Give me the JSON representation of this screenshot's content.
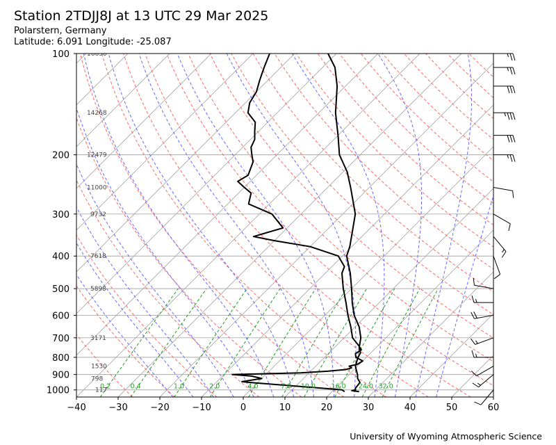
{
  "header": {
    "title": "Station 2TDJJ8J at 13 UTC 29 Mar 2025",
    "location": "Polarstern, Germany",
    "coords": "Latitude: 6.091 Longitude: -25.087"
  },
  "footer": {
    "credit": "University of Wyoming Atmospheric Science"
  },
  "colors": {
    "temperature": "#000000",
    "dewpoint": "#000000",
    "isotherm": "#aaaaaa",
    "dry_adiabat": "#ff6666",
    "moist_adiabat": "#6666ff",
    "mixing_ratio": "#229922"
  },
  "chart_data": {
    "type": "line",
    "skew_t": true,
    "x_axis": {
      "label": "",
      "range": [
        -40,
        60
      ],
      "ticks": [
        -40,
        -30,
        -20,
        -10,
        0,
        10,
        20,
        30,
        40,
        50,
        60
      ]
    },
    "y_axis": {
      "label": "",
      "log_scale": true,
      "range": [
        1050,
        100
      ],
      "ticks": [
        100,
        200,
        300,
        400,
        500,
        600,
        700,
        800,
        900,
        1000
      ]
    },
    "grid": true,
    "heights": [
      {
        "p": 100,
        "label": "16630"
      },
      {
        "p": 150,
        "label": "14268"
      },
      {
        "p": 200,
        "label": "12479"
      },
      {
        "p": 250,
        "label": "11000"
      },
      {
        "p": 300,
        "label": "9732"
      },
      {
        "p": 400,
        "label": "7618"
      },
      {
        "p": 500,
        "label": "5898"
      },
      {
        "p": 700,
        "label": "3171"
      },
      {
        "p": 850,
        "label": "1530"
      },
      {
        "p": 925,
        "label": "798"
      },
      {
        "p": 1000,
        "label": "117"
      }
    ],
    "mixing_ratio_labels": [
      "0.2",
      "0.4",
      "1.0",
      "2.0",
      "4.0",
      "7.0",
      "10.0",
      "16.0",
      "24.0",
      "32.0"
    ],
    "temperature": [
      [
        1012,
        26.5
      ],
      [
        1005,
        24.5
      ],
      [
        1000,
        25.2
      ],
      [
        990,
        24.8
      ],
      [
        950,
        24.5
      ],
      [
        925,
        23.0
      ],
      [
        900,
        22.0
      ],
      [
        880,
        21.0
      ],
      [
        850,
        19.5
      ],
      [
        800,
        18.0
      ],
      [
        775,
        17.5
      ],
      [
        750,
        16.0
      ],
      [
        700,
        14.0
      ],
      [
        650,
        11.0
      ],
      [
        600,
        7.0
      ],
      [
        550,
        3.5
      ],
      [
        500,
        0.0
      ],
      [
        450,
        -4.0
      ],
      [
        400,
        -9.0
      ],
      [
        375,
        -10.5
      ],
      [
        350,
        -12.5
      ],
      [
        300,
        -17.0
      ],
      [
        250,
        -24.5
      ],
      [
        225,
        -29.0
      ],
      [
        200,
        -35.0
      ],
      [
        175,
        -40.0
      ],
      [
        150,
        -46.0
      ],
      [
        125,
        -52.0
      ],
      [
        110,
        -57.0
      ],
      [
        100,
        -62.0
      ]
    ],
    "dewpoint": [
      [
        1012,
        23.0
      ],
      [
        1000,
        22.0
      ],
      [
        990,
        17.5
      ],
      [
        950,
        -2.0
      ],
      [
        945,
        -4.0
      ],
      [
        925,
        0.0
      ],
      [
        910,
        -3.0
      ],
      [
        900,
        -8.0
      ],
      [
        890,
        8.0
      ],
      [
        880,
        14.0
      ],
      [
        870,
        18.0
      ],
      [
        860,
        19.0
      ],
      [
        850,
        18.0
      ],
      [
        840,
        19.5
      ],
      [
        820,
        20.0
      ],
      [
        800,
        17.5
      ],
      [
        780,
        16.5
      ],
      [
        760,
        17.0
      ],
      [
        740,
        15.5
      ],
      [
        700,
        12.0
      ],
      [
        650,
        9.0
      ],
      [
        600,
        5.5
      ],
      [
        550,
        2.0
      ],
      [
        500,
        -2.0
      ],
      [
        450,
        -6.0
      ],
      [
        430,
        -7.0
      ],
      [
        400,
        -11.0
      ],
      [
        375,
        -20.0
      ],
      [
        360,
        -30.0
      ],
      [
        350,
        -36.0
      ],
      [
        330,
        -31.0
      ],
      [
        300,
        -37.0
      ],
      [
        280,
        -45.0
      ],
      [
        260,
        -47.0
      ],
      [
        250,
        -50.0
      ],
      [
        240,
        -53.0
      ],
      [
        230,
        -52.0
      ],
      [
        210,
        -54.0
      ],
      [
        200,
        -56.0
      ],
      [
        190,
        -58.0
      ],
      [
        180,
        -59.0
      ],
      [
        170,
        -61.0
      ],
      [
        160,
        -63.0
      ],
      [
        150,
        -67.0
      ],
      [
        140,
        -69.0
      ],
      [
        130,
        -70.0
      ],
      [
        120,
        -72.0
      ],
      [
        110,
        -74.0
      ],
      [
        100,
        -76.0
      ]
    ],
    "wind_barbs": [
      {
        "p": 100,
        "dir": 90,
        "kt": 25
      },
      {
        "p": 110,
        "dir": 90,
        "kt": 25
      },
      {
        "p": 125,
        "dir": 90,
        "kt": 30
      },
      {
        "p": 150,
        "dir": 90,
        "kt": 35
      },
      {
        "p": 175,
        "dir": 90,
        "kt": 30
      },
      {
        "p": 200,
        "dir": 90,
        "kt": 25
      },
      {
        "p": 250,
        "dir": 100,
        "kt": 10
      },
      {
        "p": 300,
        "dir": 120,
        "kt": 10
      },
      {
        "p": 350,
        "dir": 140,
        "kt": 15
      },
      {
        "p": 400,
        "dir": 160,
        "kt": 10
      },
      {
        "p": 500,
        "dir": 280,
        "kt": 10
      },
      {
        "p": 550,
        "dir": 270,
        "kt": 15
      },
      {
        "p": 600,
        "dir": 260,
        "kt": 20
      },
      {
        "p": 700,
        "dir": 250,
        "kt": 15
      },
      {
        "p": 800,
        "dir": 270,
        "kt": 15
      },
      {
        "p": 850,
        "dir": 240,
        "kt": 10
      },
      {
        "p": 900,
        "dir": 230,
        "kt": 15
      },
      {
        "p": 1000,
        "dir": 220,
        "kt": 10
      }
    ]
  }
}
